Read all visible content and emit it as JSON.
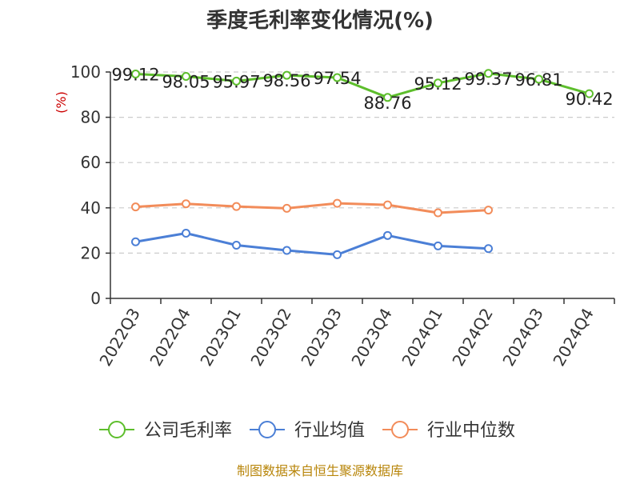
{
  "chart_data": {
    "type": "line",
    "title": "季度毛利率变化情况(%)",
    "unit_label": "(%)",
    "categories": [
      "2022Q3",
      "2022Q4",
      "2023Q1",
      "2023Q2",
      "2023Q3",
      "2023Q4",
      "2024Q1",
      "2024Q2",
      "2024Q3",
      "2024Q4"
    ],
    "ylim": [
      0,
      100
    ],
    "yticks": [
      0,
      20,
      40,
      60,
      80,
      100
    ],
    "grid": true,
    "legend_position": "bottom",
    "series": [
      {
        "name": "公司毛利率",
        "color": "#5dbe2c",
        "values": [
          99.12,
          98.05,
          95.97,
          98.56,
          97.54,
          88.76,
          95.12,
          99.37,
          96.81,
          90.42
        ],
        "labels": [
          "99.12",
          "98.05",
          "95.97",
          "98.56",
          "97.54",
          "88.76",
          "95.12",
          "99.37",
          "96.81",
          "90.42"
        ]
      },
      {
        "name": "行业均值",
        "color": "#4b7fd6",
        "values": [
          25.0,
          28.8,
          23.5,
          21.2,
          19.3,
          27.8,
          23.2,
          22.0,
          null,
          null
        ]
      },
      {
        "name": "行业中位数",
        "color": "#f28c5a",
        "values": [
          40.4,
          41.8,
          40.6,
          39.8,
          42.0,
          41.3,
          37.8,
          39.0,
          null,
          null
        ]
      }
    ]
  },
  "footer": {
    "source": "制图数据来自恒生聚源数据库"
  }
}
